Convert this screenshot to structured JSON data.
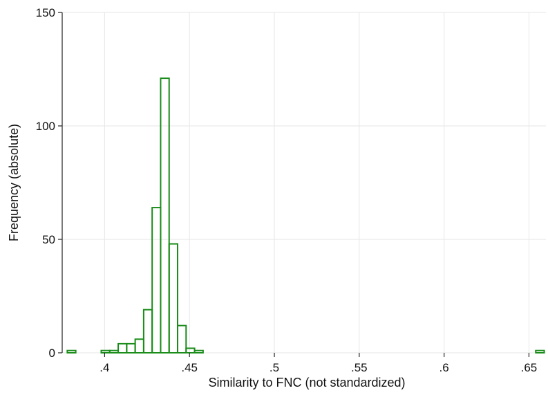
{
  "chart_data": {
    "type": "bar",
    "histogram": true,
    "xlabel": "Similarity to FNC (not standardized)",
    "ylabel": "Frequency (absolute)",
    "xlim": [
      0.375,
      0.66
    ],
    "ylim": [
      0,
      150
    ],
    "bin_width": 0.005,
    "x_ticks": [
      {
        "value": 0.4,
        "label": ".4"
      },
      {
        "value": 0.45,
        "label": ".45"
      },
      {
        "value": 0.5,
        "label": ".5"
      },
      {
        "value": 0.55,
        "label": ".55"
      },
      {
        "value": 0.6,
        "label": ".6"
      },
      {
        "value": 0.65,
        "label": ".65"
      }
    ],
    "y_ticks": [
      {
        "value": 0,
        "label": "0"
      },
      {
        "value": 50,
        "label": "50"
      },
      {
        "value": 100,
        "label": "100"
      },
      {
        "value": 150,
        "label": "150"
      }
    ],
    "grid": true,
    "bar_color": "#1a8c1a",
    "bins": [
      {
        "start": 0.378,
        "count": 1
      },
      {
        "start": 0.398,
        "count": 1
      },
      {
        "start": 0.403,
        "count": 1
      },
      {
        "start": 0.408,
        "count": 4
      },
      {
        "start": 0.413,
        "count": 4
      },
      {
        "start": 0.418,
        "count": 6
      },
      {
        "start": 0.423,
        "count": 19
      },
      {
        "start": 0.428,
        "count": 64
      },
      {
        "start": 0.433,
        "count": 121
      },
      {
        "start": 0.438,
        "count": 48
      },
      {
        "start": 0.443,
        "count": 12
      },
      {
        "start": 0.448,
        "count": 2
      },
      {
        "start": 0.453,
        "count": 1
      },
      {
        "start": 0.654,
        "count": 1
      }
    ]
  }
}
